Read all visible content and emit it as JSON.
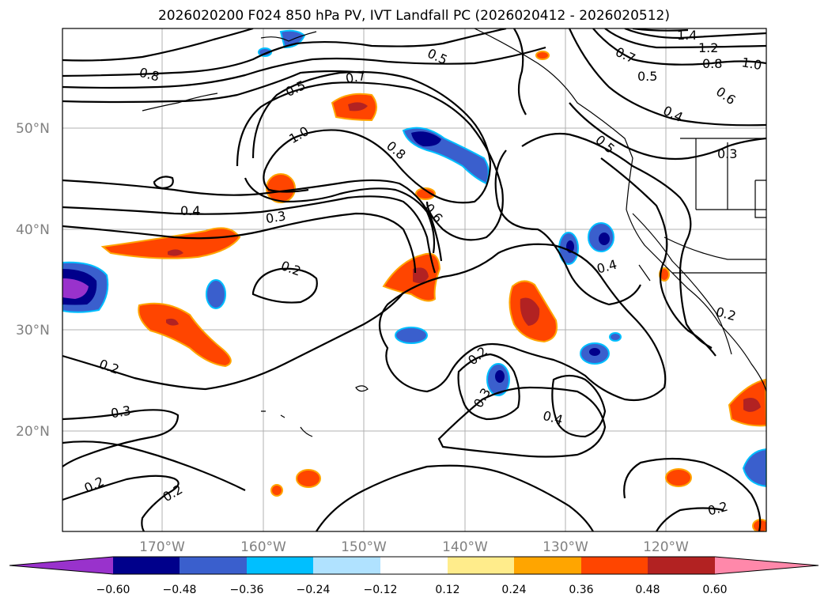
{
  "title": "2026020200 F024 850 hPa PV, IVT Landfall PC (2026020412 - 2026020512)",
  "lat_labels": [
    "50°N",
    "40°N",
    "30°N",
    "20°N"
  ],
  "lon_labels": [
    "170°W",
    "160°W",
    "150°W",
    "140°W",
    "130°W",
    "120°W"
  ],
  "contour_labels": [
    "1.4",
    "1.2",
    "1.0",
    "0.8",
    "0.7",
    "0.6",
    "0.5",
    "0.4",
    "0.3",
    "0.2"
  ],
  "colorbar": {
    "ticks": [
      "−0.60",
      "−0.48",
      "−0.36",
      "−0.24",
      "−0.12",
      "0.12",
      "0.24",
      "0.36",
      "0.48",
      "0.60"
    ],
    "colors": [
      "#9932cc",
      "#00008b",
      "#3a5fcd",
      "#00bfff",
      "#b0e2ff",
      "#ffffff",
      "#ffec8b",
      "#ffa500",
      "#ff4500",
      "#b22222",
      "#ff88aa"
    ]
  },
  "style": {
    "land_color": "#ffffff",
    "grid_color": "#b0b0b0",
    "contour_color": "#000000"
  }
}
